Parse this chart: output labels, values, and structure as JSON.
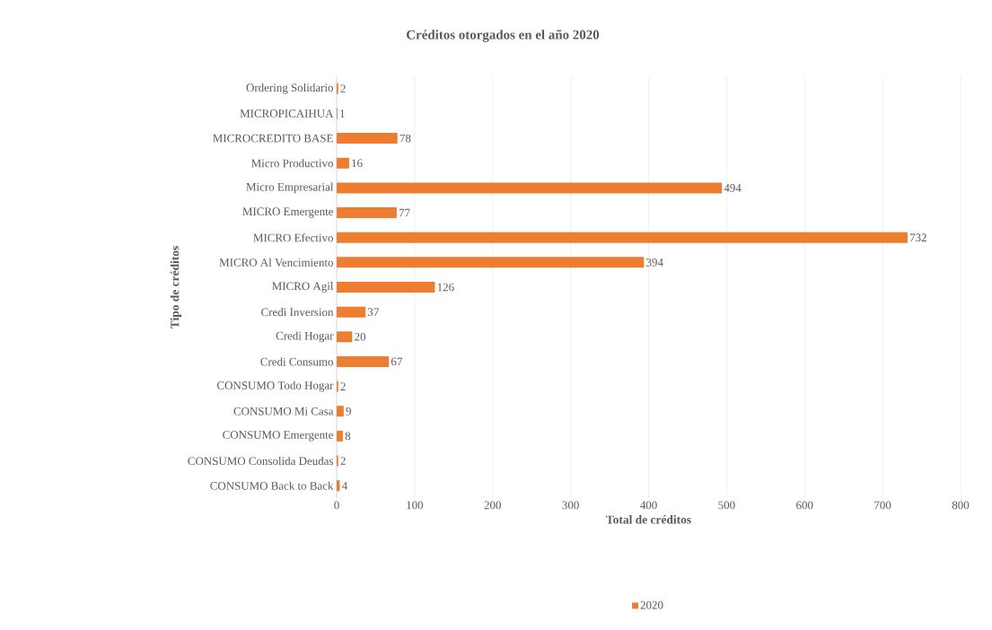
{
  "chart_data": {
    "type": "bar",
    "orientation": "horizontal",
    "title": "Créditos otorgados en el año 2020",
    "xlabel": "Total de créditos",
    "ylabel": "Tipo de créditos",
    "categories": [
      "Ordering Solidario",
      "MICROPICAIHUA",
      "MICROCREDITO BASE",
      "Micro Productivo",
      "Micro Empresarial",
      "MICRO Emergente",
      "MICRO Efectivo",
      "MICRO Al Vencimiento",
      "MICRO Agil",
      "Credi Inversion",
      "Credi Hogar",
      "Credi Consumo",
      "CONSUMO Todo Hogar",
      "CONSUMO Mi Casa",
      "CONSUMO Emergente",
      "CONSUMO Consolida Deudas",
      "CONSUMO Back to Back"
    ],
    "series": [
      {
        "name": "2020",
        "color": "#ed7d31",
        "values": [
          2,
          1,
          78,
          16,
          494,
          77,
          732,
          394,
          126,
          37,
          20,
          67,
          2,
          9,
          8,
          2,
          4
        ]
      }
    ],
    "xlim": [
      0,
      800
    ],
    "xticks": [
      0,
      100,
      200,
      300,
      400,
      500,
      600,
      700,
      800
    ],
    "grid": "x",
    "legend": "bottom",
    "data_labels": true
  }
}
